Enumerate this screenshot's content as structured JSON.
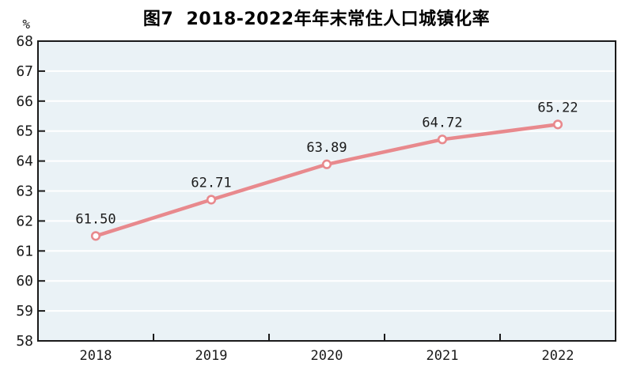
{
  "chart_data": {
    "type": "line",
    "title": "图7  2018-2022年年末常住人口城镇化率",
    "unit_label": "%",
    "categories": [
      "2018",
      "2019",
      "2020",
      "2021",
      "2022"
    ],
    "values": [
      61.5,
      62.71,
      63.89,
      64.72,
      65.22
    ],
    "value_labels": [
      "61.50",
      "62.71",
      "63.89",
      "64.72",
      "65.22"
    ],
    "ylim": [
      58,
      68
    ],
    "ytick_step": 1,
    "grid": true,
    "legend": "none",
    "colors": {
      "line": "#e8898d",
      "marker_fill": "#ffffff",
      "plot_background": "#eaf2f6",
      "gridline": "#ffffff",
      "axis": "#1a1a1a",
      "text": "#1a1a1a"
    }
  }
}
